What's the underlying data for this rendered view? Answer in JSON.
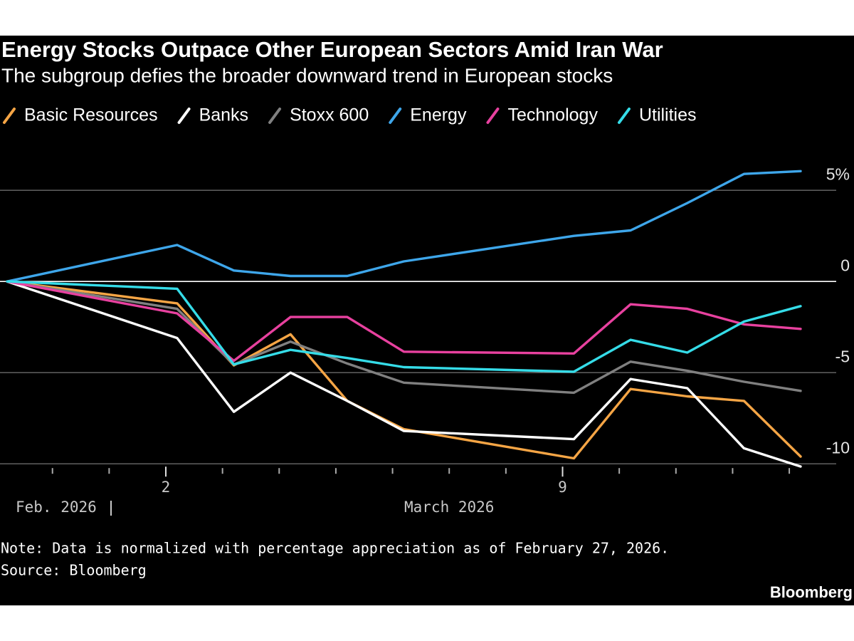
{
  "chart_data": {
    "type": "line",
    "title": "Energy Stocks Outpace Other European Sectors Amid Iran War",
    "subtitle": "The subgroup defies the broader downward trend in European stocks",
    "x": [
      0,
      3,
      4,
      5,
      6,
      7,
      10,
      11,
      12,
      13,
      14
    ],
    "xlim": [
      0,
      14
    ],
    "xticks": [
      {
        "value": 3,
        "label": "2"
      },
      {
        "value": 10,
        "label": "9"
      }
    ],
    "xminor": [
      1,
      2,
      4,
      5,
      6,
      7,
      8,
      9,
      11,
      12,
      13,
      14
    ],
    "x_groups": [
      "Feb. 2026",
      "March 2026"
    ],
    "ylim": [
      -10.5,
      7
    ],
    "yticks": [
      {
        "value": 5,
        "label": "5%"
      },
      0,
      -5,
      -10
    ],
    "grid": true,
    "series": [
      {
        "name": "Basic Resources",
        "color": "#f5a545",
        "values": [
          0,
          -1.2,
          -4.6,
          -2.9,
          -6.55,
          -8.1,
          -9.7,
          -5.9,
          -6.3,
          -6.55,
          -9.6
        ]
      },
      {
        "name": "Banks",
        "color": "#ffffff",
        "values": [
          0,
          -3.1,
          -7.15,
          -5.0,
          -6.55,
          -8.2,
          -8.65,
          -5.35,
          -5.85,
          -9.15,
          -10.15
        ]
      },
      {
        "name": "Stoxx 600",
        "color": "#808080",
        "values": [
          0,
          -1.5,
          -4.55,
          -3.3,
          -4.5,
          -5.55,
          -6.1,
          -4.4,
          -4.9,
          -5.5,
          -6.0
        ]
      },
      {
        "name": "Energy",
        "color": "#3ea6ea",
        "values": [
          0,
          2.0,
          0.6,
          0.3,
          0.3,
          1.1,
          2.5,
          2.8,
          4.3,
          5.9,
          6.05
        ]
      },
      {
        "name": "Technology",
        "color": "#e8419f",
        "values": [
          0,
          -1.75,
          -4.35,
          -1.95,
          -1.95,
          -3.85,
          -3.95,
          -1.25,
          -1.5,
          -2.35,
          -2.6
        ]
      },
      {
        "name": "Utilities",
        "color": "#35dce8",
        "values": [
          0,
          -0.4,
          -4.55,
          -3.75,
          -4.2,
          -4.7,
          -4.95,
          -3.2,
          -3.9,
          -2.2,
          -1.35
        ]
      }
    ],
    "note": "Note: Data is normalized with percentage appreciation as of February 27, 2026.",
    "source": "Source: Bloomberg",
    "brand": "Bloomberg"
  }
}
